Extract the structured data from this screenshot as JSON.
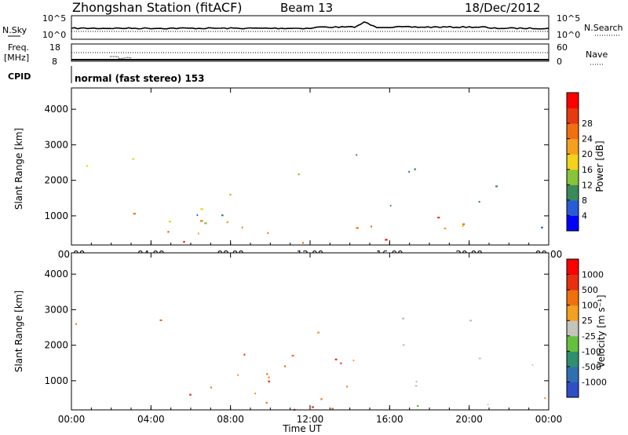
{
  "header": {
    "station": "Zhongshan Station (fitACF)",
    "beam": "Beam 13",
    "date": "18/Dec/2012"
  },
  "params": {
    "nsky_label": "N.Sky",
    "nsky_ticks": [
      "10^5",
      "10^0"
    ],
    "nsearch_label": "N.Search",
    "nsearch_ticks": [
      "10^5",
      "10^0"
    ],
    "freq_label_1": "Freq.",
    "freq_label_2": "[MHz]",
    "freq_ticks": [
      "18",
      "8"
    ],
    "nave_label": "Nave",
    "nave_ticks": [
      "60",
      "0"
    ],
    "cpid_label": "CPID",
    "cpid_text": "normal (fast stereo) 153"
  },
  "colors": {
    "power_scale": [
      "#0000ff",
      "#2a5bd6",
      "#3a8a5a",
      "#88c43a",
      "#f2d21a",
      "#f5a020",
      "#f07010",
      "#e63a10",
      "#ff0000"
    ],
    "velocity_scale": [
      "#2f4fc8",
      "#3070b0",
      "#2f8f6f",
      "#66c040",
      "#c4c4bc",
      "#f5a020",
      "#f07010",
      "#e83010",
      "#ff0000"
    ]
  },
  "chart_data": [
    {
      "type": "heatmap",
      "name": "power",
      "ylabel": "Slant Range [km]",
      "yticks": [
        "1000",
        "2000",
        "3000",
        "4000"
      ],
      "xticks": [
        "00:00",
        "04:00",
        "08:00",
        "12:00",
        "16:00",
        "20:00",
        "00:00"
      ],
      "colorbar_label": "Power [dB]",
      "colorbar_ticks": [
        "4",
        "8",
        "12",
        "16",
        "20",
        "24",
        "28"
      ],
      "ylim": [
        180,
        4600
      ],
      "xlim_hours": [
        0,
        24
      ]
    },
    {
      "type": "heatmap",
      "name": "velocity",
      "ylabel": "Slant Range [km]",
      "yticks": [
        "1000",
        "2000",
        "3000",
        "4000"
      ],
      "xticks": [
        "00:00",
        "04:00",
        "08:00",
        "12:00",
        "16:00",
        "20:00",
        "00:00"
      ],
      "xlabel": "Time UT",
      "colorbar_label": "Velocity [m s⁻¹]",
      "colorbar_ticks": [
        "1000",
        "500",
        "100",
        "25",
        "-25",
        "-100",
        "-500",
        "-1000"
      ],
      "ylim": [
        180,
        4600
      ],
      "xlim_hours": [
        0,
        24
      ]
    }
  ]
}
